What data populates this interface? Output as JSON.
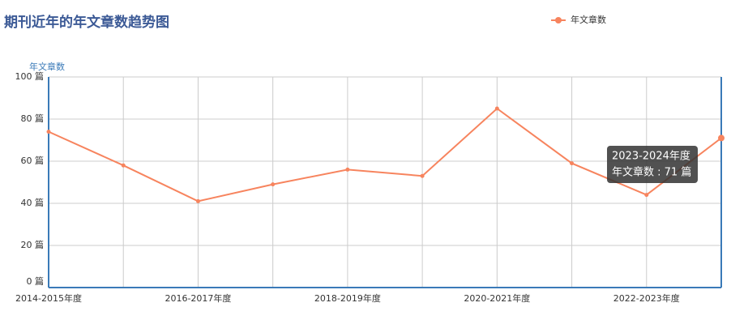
{
  "chart_data": {
    "type": "line",
    "title": "期刊近年的年文章数趋势图",
    "y_axis_label": "年文章数",
    "categories": [
      "2014-2015年度",
      null,
      "2016-2017年度",
      null,
      "2018-2019年度",
      null,
      "2020-2021年度",
      null,
      "2022-2023年度",
      "2023-2024年度"
    ],
    "series": [
      {
        "name": "年文章数",
        "color": "#f7845e",
        "values": [
          74,
          58,
          41,
          49,
          56,
          53,
          85,
          59,
          44,
          71
        ]
      }
    ],
    "ylim": [
      0,
      100
    ],
    "yticks": [
      {
        "value": 0,
        "label": "0 篇"
      },
      {
        "value": 20,
        "label": "20 篇"
      },
      {
        "value": 40,
        "label": "40 篇"
      },
      {
        "value": 60,
        "label": "60 篇"
      },
      {
        "value": 80,
        "label": "80 篇"
      },
      {
        "value": 100,
        "label": "100 篇"
      }
    ],
    "grid": true,
    "legend": "top-right",
    "tooltip_text": "年文章数 : 71 篇"
  }
}
